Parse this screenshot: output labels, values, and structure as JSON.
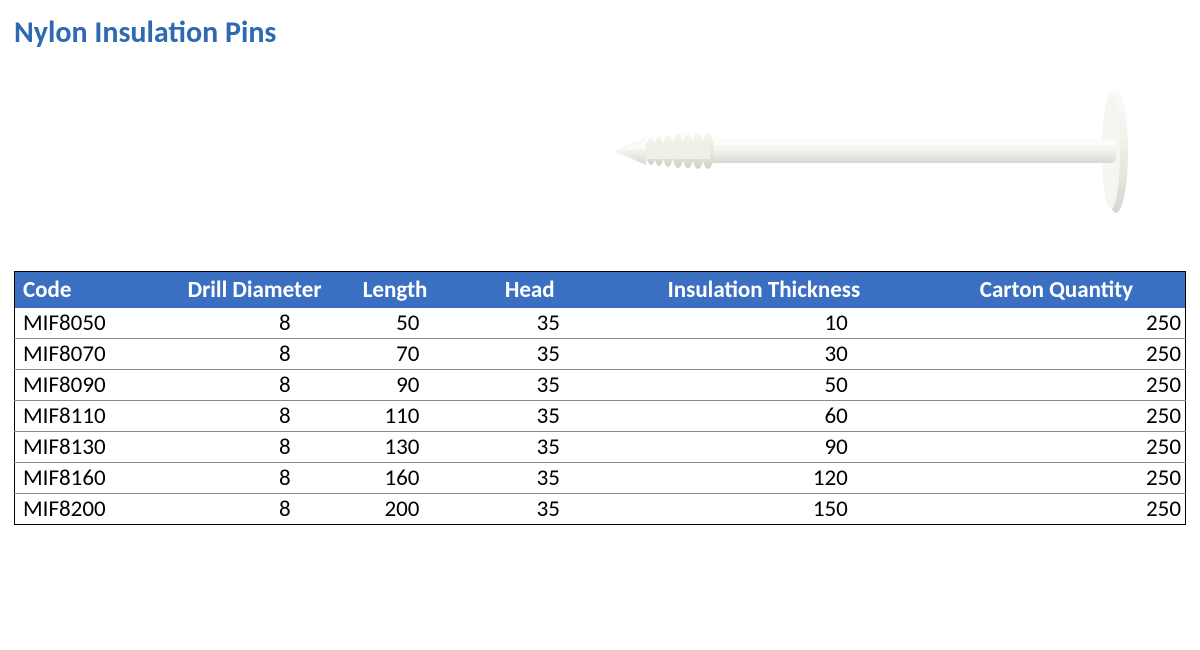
{
  "title": {
    "text": "Nylon Insulation Pins",
    "color": "#2e69b2"
  },
  "illustration": {
    "name": "nylon-insulation-pin",
    "shaft_color": "#f3f2ed",
    "highlight_color": "#fafaf7",
    "shadow_color": "#d9d8d2",
    "thread_color": "#e3e2da"
  },
  "table": {
    "header_bg": "#3b6fc1",
    "header_text_color": "#ffffff",
    "row_text_color": "#000000",
    "border_color": "#000000",
    "grid_color": "#9aa0a6",
    "columns": [
      {
        "label": "Code",
        "align": "left"
      },
      {
        "label": "Drill Diameter",
        "align": "center"
      },
      {
        "label": "Length",
        "align": "center"
      },
      {
        "label": "Head",
        "align": "center"
      },
      {
        "label": "Insulation Thickness",
        "align": "center"
      },
      {
        "label": "Carton Quantity",
        "align": "right"
      }
    ],
    "rows": [
      {
        "code": "MIF8050",
        "drill": "8",
        "length": "50",
        "head": "35",
        "thickness": "10",
        "qty": "250"
      },
      {
        "code": "MIF8070",
        "drill": "8",
        "length": "70",
        "head": "35",
        "thickness": "30",
        "qty": "250"
      },
      {
        "code": "MIF8090",
        "drill": "8",
        "length": "90",
        "head": "35",
        "thickness": "50",
        "qty": "250"
      },
      {
        "code": "MIF8110",
        "drill": "8",
        "length": "110",
        "head": "35",
        "thickness": "60",
        "qty": "250"
      },
      {
        "code": "MIF8130",
        "drill": "8",
        "length": "130",
        "head": "35",
        "thickness": "90",
        "qty": "250"
      },
      {
        "code": "MIF8160",
        "drill": "8",
        "length": "160",
        "head": "35",
        "thickness": "120",
        "qty": "250"
      },
      {
        "code": "MIF8200",
        "drill": "8",
        "length": "200",
        "head": "35",
        "thickness": "150",
        "qty": "250"
      }
    ]
  }
}
